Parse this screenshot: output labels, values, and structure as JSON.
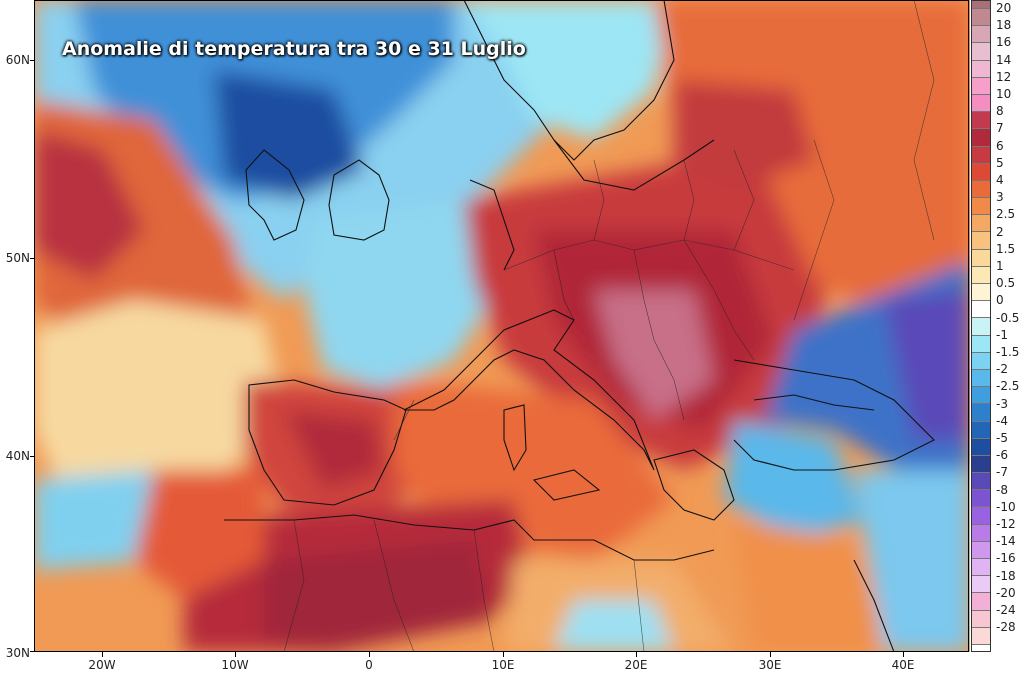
{
  "title": "Anomalie di temperatura tra 30 e 31 Luglio",
  "axes": {
    "lat_labels": [
      "60N",
      "50N",
      "40N",
      "30N"
    ],
    "lon_labels": [
      "20W",
      "10W",
      "0",
      "10E",
      "20E",
      "30E",
      "40E"
    ]
  },
  "legend": {
    "labels": [
      "20",
      "18",
      "16",
      "14",
      "12",
      "10",
      "8",
      "7",
      "6",
      "5",
      "4",
      "3",
      "2.5",
      "2",
      "1.5",
      "1",
      "0.5",
      "0",
      "-0.5",
      "-1",
      "-1.5",
      "-2",
      "-2.5",
      "-3",
      "-4",
      "-5",
      "-6",
      "-7",
      "-8",
      "-10",
      "-12",
      "-14",
      "-16",
      "-18",
      "-20",
      "-24",
      "-28"
    ],
    "colors": [
      "#c08890",
      "#d9a6b6",
      "#e7bfd0",
      "#f0b7d3",
      "#f59fca",
      "#f48dc0",
      "#c23a4d",
      "#b02a3b",
      "#c73a3f",
      "#dc4a35",
      "#ea6a3a",
      "#f08a48",
      "#f5a861",
      "#f8c27e",
      "#fad89b",
      "#fbe8b4",
      "#fdf4d5",
      "#ffffff",
      "#c8f3f7",
      "#9de6f5",
      "#7cd2f2",
      "#5ab8ea",
      "#3f9ede",
      "#2e80cc",
      "#2366b8",
      "#1e4ea0",
      "#2a3f8e",
      "#5a4ab8",
      "#7c54d2",
      "#9a62e0",
      "#b87be8",
      "#cf98ee",
      "#e0b4f2",
      "#eacbf6",
      "#f2b0d8",
      "#f7c6d0",
      "#fbd9d6"
    ]
  }
}
